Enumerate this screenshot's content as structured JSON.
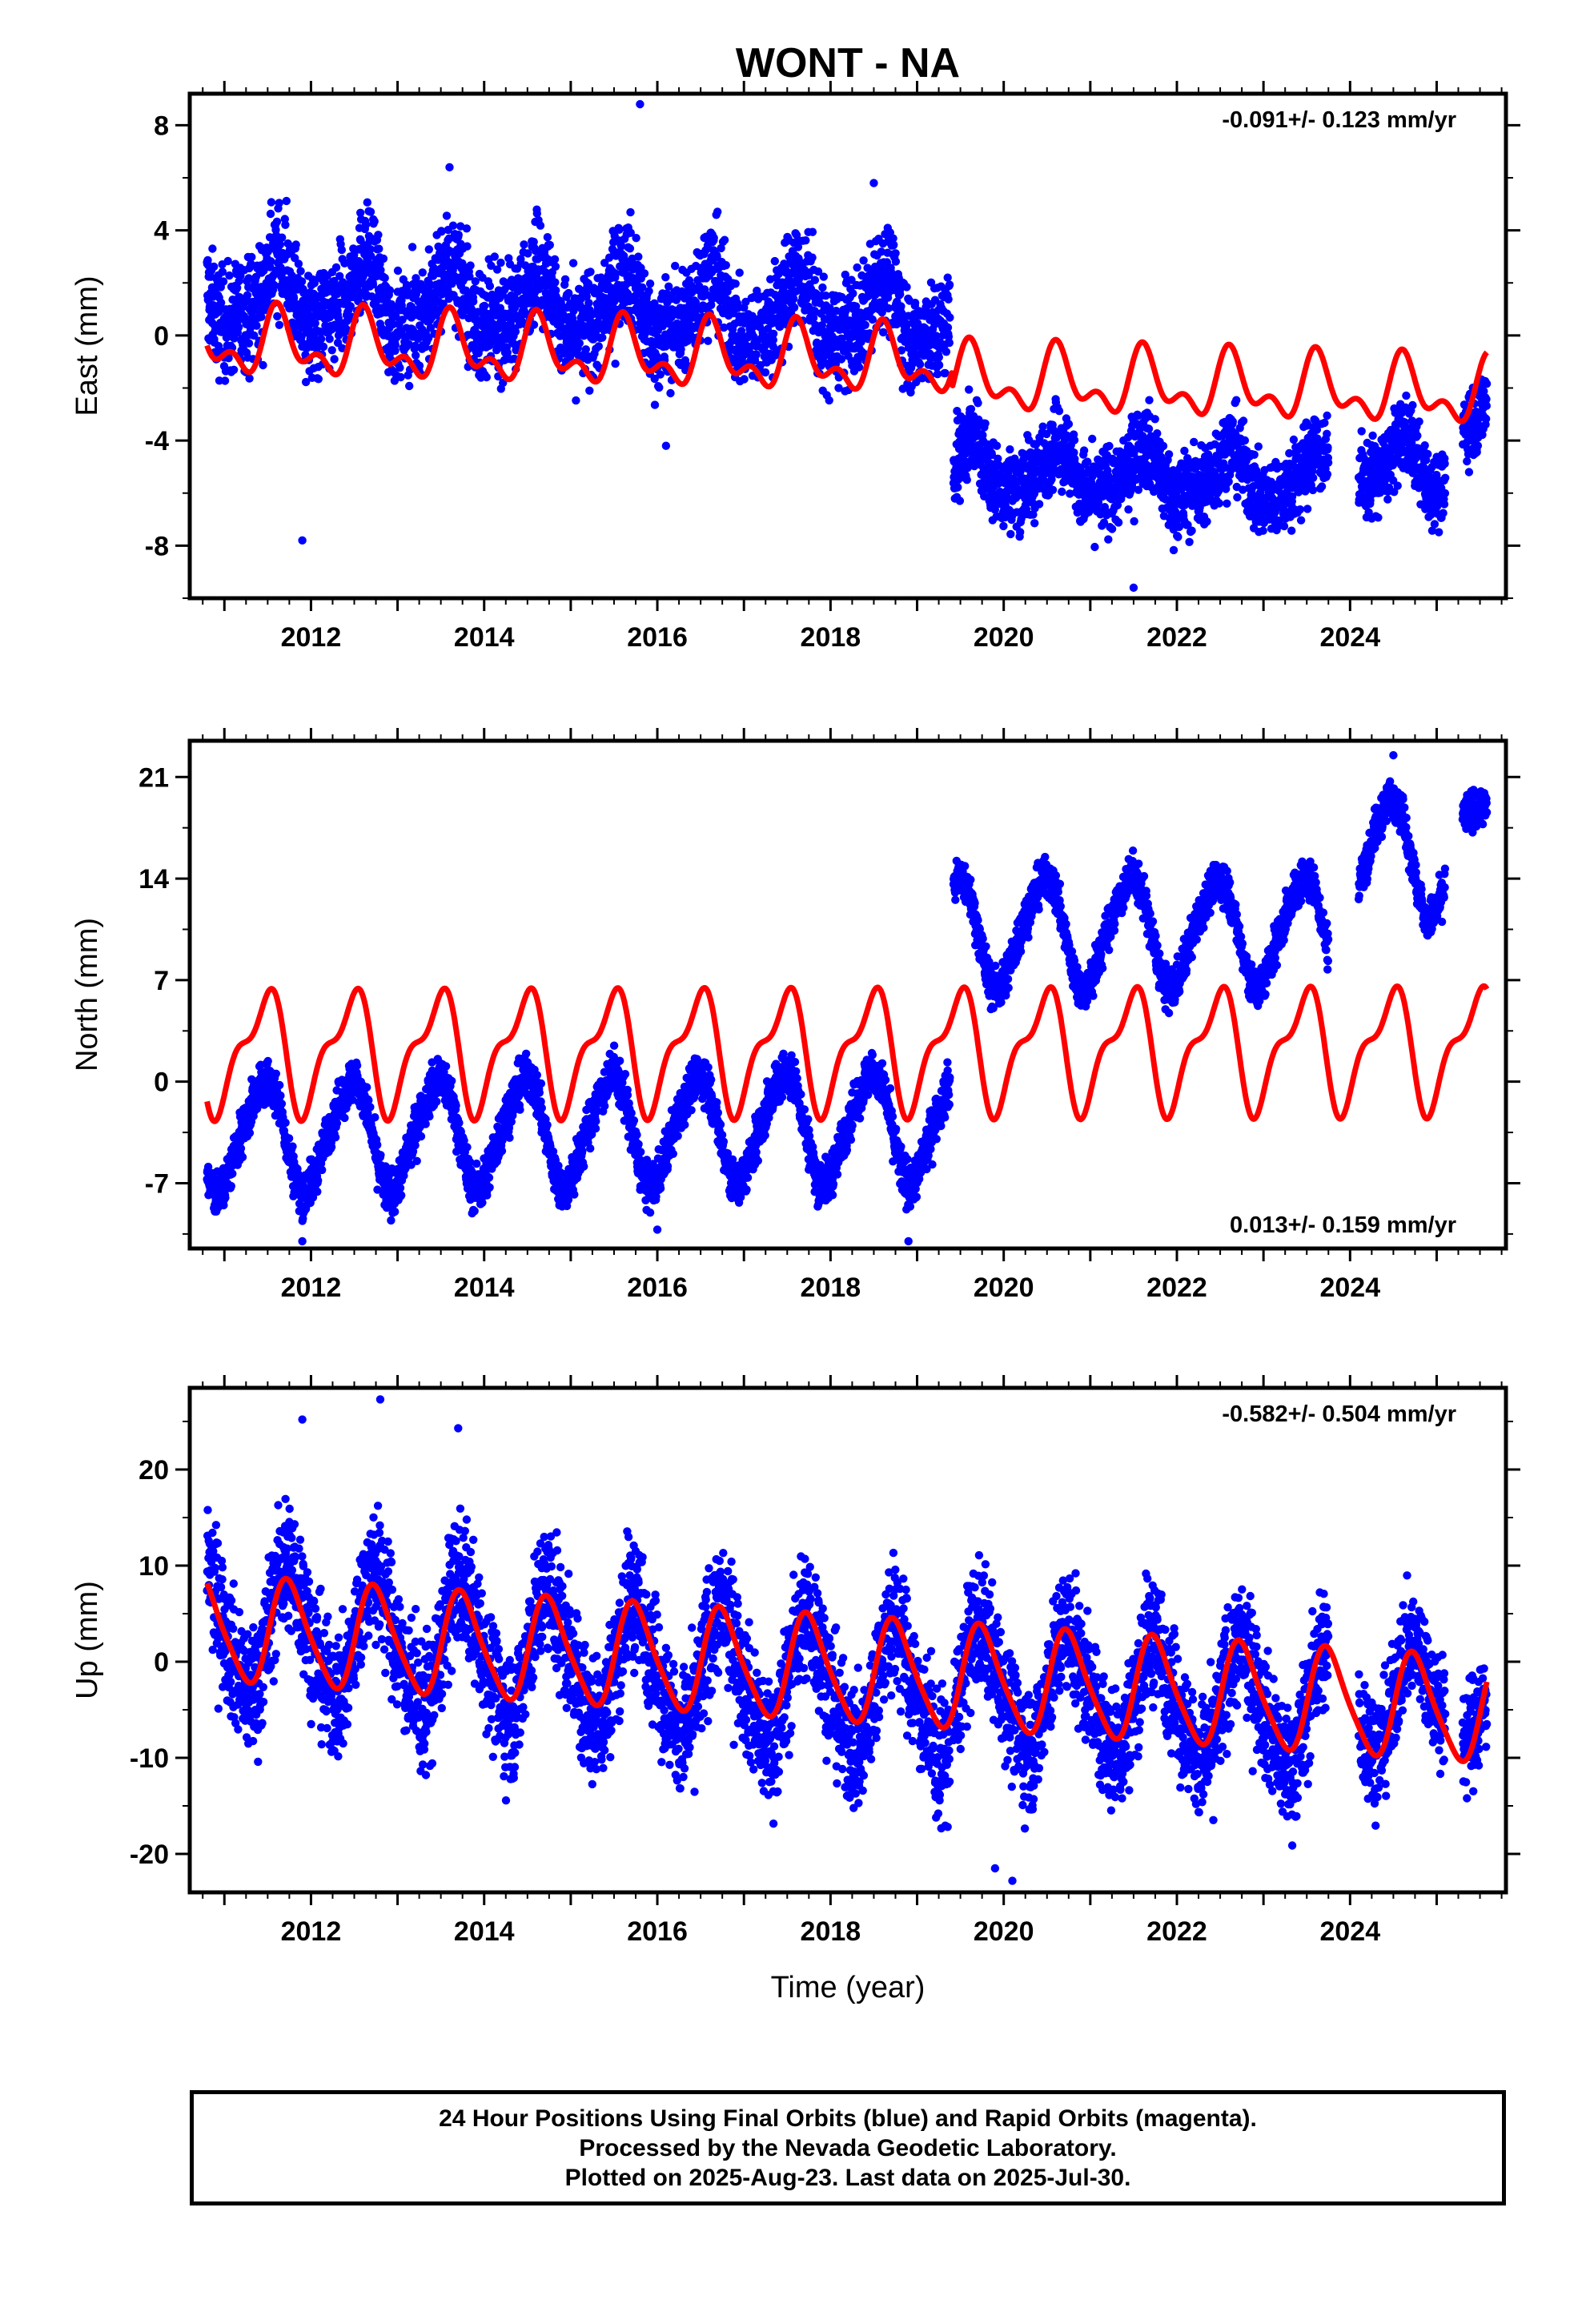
{
  "title": "WONT - NA",
  "xlabel": "Time (year)",
  "caption": [
    "24 Hour Positions Using Final Orbits (blue) and Rapid Orbits (magenta).",
    "Processed by the Nevada Geodetic Laboratory.",
    "Plotted on 2025-Aug-23. Last data on 2025-Jul-30."
  ],
  "colors": {
    "final_orbits": "#0000ff",
    "rapid_orbits": "#ff00ff",
    "model_fit": "#ff0000"
  },
  "chart_data": [
    {
      "type": "scatter",
      "title": "WONT - NA",
      "ylabel": "East (mm)",
      "xlabel": "",
      "xlim": [
        2010.6,
        2025.8
      ],
      "ylim": [
        -10.0,
        9.2
      ],
      "xticks": [
        2012,
        2014,
        2016,
        2018,
        2020,
        2022,
        2024
      ],
      "yticks": [
        -8,
        -4,
        0,
        4,
        8
      ],
      "rate_text": "-0.091+/- 0.123 mm/yr",
      "rate_position": "top-right",
      "grid": false,
      "series": [
        {
          "style": "points",
          "segments": [
            {
              "x": [
                2010.8,
                2019.38
              ],
              "offset": 1.5,
              "trend": -0.09,
              "amp1": 1.2,
              "phase1": 0.6,
              "amp2": 0.4,
              "phase2": 0.3,
              "noise": 1.4
            },
            {
              "x": [
                2019.42,
                2023.75
              ],
              "offset": -5.1,
              "trend": -0.09,
              "amp1": 0.9,
              "phase1": 0.6,
              "amp2": 0.3,
              "phase2": 0.3,
              "noise": 1.1
            },
            {
              "x": [
                2024.1,
                2025.1
              ],
              "offset": -5.0,
              "trend": -0.09,
              "amp1": 0.9,
              "phase1": 0.6,
              "amp2": 0.3,
              "phase2": 0.3,
              "noise": 1.0
            },
            {
              "x": [
                2025.3,
                2025.58
              ],
              "offset": -3.2,
              "trend": 0.0,
              "amp1": 0.5,
              "phase1": 0.6,
              "amp2": 0.2,
              "phase2": 0.3,
              "noise": 1.0
            }
          ],
          "highlights": [
            [
              2011.9,
              -7.8
            ],
            [
              2015.8,
              8.8
            ],
            [
              2021.5,
              -9.6
            ],
            [
              2013.6,
              6.4
            ],
            [
              2018.5,
              5.8
            ],
            [
              2016.1,
              -4.2
            ]
          ]
        },
        {
          "style": "line",
          "x": [
            2010.8,
            2025.58
          ],
          "ref_x": 2018.0,
          "offset": -0.95,
          "trend": -0.091,
          "steps": [
            [
              2019.4,
              -0.6
            ]
          ],
          "amp1": 1.0,
          "phase1": 0.63,
          "amp2": 0.65,
          "phase2": 0.18
        }
      ]
    },
    {
      "type": "scatter",
      "title": "",
      "ylabel": "North (mm)",
      "xlabel": "",
      "xlim": [
        2010.6,
        2025.8
      ],
      "ylim": [
        -11.5,
        23.5
      ],
      "xticks": [
        2012,
        2014,
        2016,
        2018,
        2020,
        2022,
        2024
      ],
      "yticks": [
        -7,
        0,
        7,
        14,
        21
      ],
      "rate_text": "0.013+/- 0.159 mm/yr",
      "rate_position": "bottom-right",
      "grid": false,
      "series": [
        {
          "style": "points",
          "segments": [
            {
              "x": [
                2010.8,
                2019.38
              ],
              "offset": -3.8,
              "trend": 0.1,
              "amp1": 3.7,
              "phase1": 0.45,
              "amp2": 0.5,
              "phase2": 0.2,
              "noise": 1.1
            },
            {
              "x": [
                2019.42,
                2023.75
              ],
              "offset": 10.3,
              "trend": 0.0,
              "amp1": 3.7,
              "phase1": 0.45,
              "amp2": 0.5,
              "phase2": 0.2,
              "noise": 1.0
            },
            {
              "x": [
                2024.1,
                2025.1
              ],
              "offset": 15.5,
              "trend": 0.0,
              "amp1": 4.0,
              "phase1": 0.45,
              "amp2": 0.5,
              "phase2": 0.2,
              "noise": 1.0
            },
            {
              "x": [
                2025.3,
                2025.58
              ],
              "offset": 18.0,
              "trend": 0.0,
              "amp1": 1.0,
              "phase1": 0.45,
              "amp2": 0.2,
              "phase2": 0.2,
              "noise": 0.9
            }
          ],
          "highlights": [
            [
              2011.9,
              -11.0
            ],
            [
              2016.0,
              -10.2
            ],
            [
              2018.9,
              -11.0
            ],
            [
              2024.5,
              22.5
            ]
          ]
        },
        {
          "style": "line",
          "x": [
            2010.8,
            2025.58
          ],
          "ref_x": 2018.0,
          "offset": 2.2,
          "trend": 0.013,
          "steps": [],
          "amp1": 3.7,
          "phase1": 0.45,
          "amp2": 1.6,
          "phase2": 0.2
        }
      ]
    },
    {
      "type": "scatter",
      "title": "",
      "ylabel": "Up (mm)",
      "xlabel": "Time (year)",
      "xlim": [
        2010.6,
        2025.8
      ],
      "ylim": [
        -24.0,
        28.5
      ],
      "xticks": [
        2012,
        2014,
        2016,
        2018,
        2020,
        2022,
        2024
      ],
      "yticks": [
        -20,
        -10,
        0,
        10,
        20
      ],
      "rate_text": "-0.582+/- 0.504 mm/yr",
      "rate_position": "top-right",
      "grid": false,
      "series": [
        {
          "style": "points",
          "segments": [
            {
              "x": [
                2010.8,
                2019.38
              ],
              "offset": 4.0,
              "trend": -0.9,
              "amp1": 6.5,
              "phase1": 0.75,
              "amp2": 0.8,
              "phase2": 0.3,
              "noise": 4.8
            },
            {
              "x": [
                2019.42,
                2023.75
              ],
              "offset": -2.5,
              "trend": -0.6,
              "amp1": 6.0,
              "phase1": 0.75,
              "amp2": 0.8,
              "phase2": 0.3,
              "noise": 4.6
            },
            {
              "x": [
                2024.1,
                2025.1
              ],
              "offset": -3.5,
              "trend": -0.6,
              "amp1": 5.5,
              "phase1": 0.75,
              "amp2": 0.8,
              "phase2": 0.3,
              "noise": 4.2
            },
            {
              "x": [
                2025.3,
                2025.58
              ],
              "offset": -5.0,
              "trend": 0.0,
              "amp1": 3.0,
              "phase1": 0.75,
              "amp2": 0.5,
              "phase2": 0.3,
              "noise": 4.0
            }
          ],
          "highlights": [
            [
              2012.8,
              27.3
            ],
            [
              2013.7,
              24.3
            ],
            [
              2020.1,
              -22.8
            ],
            [
              2019.9,
              -21.5
            ],
            [
              2011.9,
              25.2
            ]
          ]
        },
        {
          "style": "line",
          "x": [
            2010.8,
            2025.58
          ],
          "ref_x": 2018.0,
          "offset": -0.8,
          "trend": -0.582,
          "steps": [],
          "amp1": 5.3,
          "phase1": 0.75,
          "amp2": 0.9,
          "phase2": 0.3
        }
      ]
    }
  ]
}
